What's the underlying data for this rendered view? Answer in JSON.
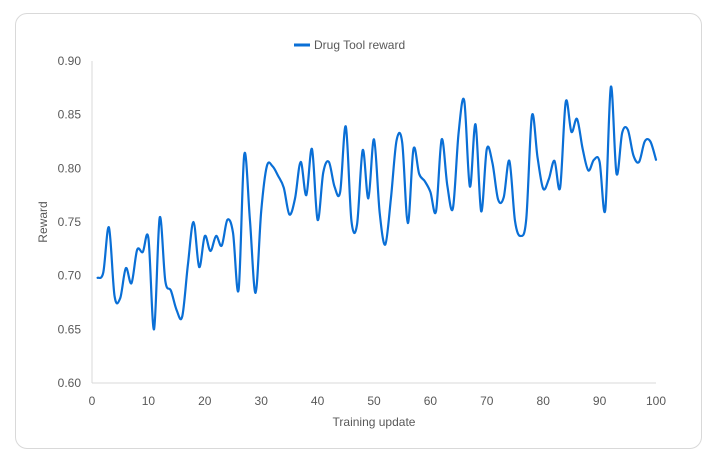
{
  "chart_data": {
    "type": "line",
    "xlabel": "Training update",
    "ylabel": "Reward",
    "xlim": [
      0,
      100
    ],
    "ylim": [
      0.6,
      0.9
    ],
    "x_ticks": [
      0,
      10,
      20,
      30,
      40,
      50,
      60,
      70,
      80,
      90,
      100
    ],
    "y_ticks": [
      0.6,
      0.65,
      0.7,
      0.75,
      0.8,
      0.85,
      0.9
    ],
    "x_tick_labels": [
      "0",
      "10",
      "20",
      "30",
      "40",
      "50",
      "60",
      "70",
      "80",
      "90",
      "100"
    ],
    "y_tick_labels": [
      "0.60",
      "0.65",
      "0.70",
      "0.75",
      "0.80",
      "0.85",
      "0.90"
    ],
    "legend_position": "top-center",
    "grid": false,
    "series": [
      {
        "name": "Drug Tool reward",
        "color": "#0a6fd6",
        "x": [
          1,
          2,
          3,
          4,
          5,
          6,
          7,
          8,
          9,
          10,
          11,
          12,
          13,
          14,
          15,
          16,
          17,
          18,
          19,
          20,
          21,
          22,
          23,
          24,
          25,
          26,
          27,
          28,
          29,
          30,
          31,
          32,
          33,
          34,
          35,
          36,
          37,
          38,
          39,
          40,
          41,
          42,
          43,
          44,
          45,
          46,
          47,
          48,
          49,
          50,
          51,
          52,
          53,
          54,
          55,
          56,
          57,
          58,
          59,
          60,
          61,
          62,
          63,
          64,
          65,
          66,
          67,
          68,
          69,
          70,
          71,
          72,
          73,
          74,
          75,
          76,
          77,
          78,
          79,
          80,
          81,
          82,
          83,
          84,
          85,
          86,
          87,
          88,
          89,
          90,
          91,
          92,
          93,
          94,
          95,
          96,
          97,
          98,
          99,
          100
        ],
        "values": [
          0.698,
          0.703,
          0.745,
          0.681,
          0.679,
          0.707,
          0.693,
          0.724,
          0.722,
          0.735,
          0.65,
          0.754,
          0.695,
          0.686,
          0.668,
          0.662,
          0.71,
          0.75,
          0.708,
          0.737,
          0.723,
          0.737,
          0.728,
          0.752,
          0.74,
          0.687,
          0.813,
          0.752,
          0.684,
          0.76,
          0.802,
          0.802,
          0.793,
          0.782,
          0.757,
          0.772,
          0.806,
          0.775,
          0.818,
          0.752,
          0.796,
          0.806,
          0.783,
          0.778,
          0.839,
          0.751,
          0.748,
          0.817,
          0.772,
          0.827,
          0.759,
          0.729,
          0.772,
          0.826,
          0.824,
          0.749,
          0.818,
          0.795,
          0.788,
          0.778,
          0.76,
          0.827,
          0.784,
          0.763,
          0.833,
          0.863,
          0.783,
          0.841,
          0.76,
          0.818,
          0.805,
          0.771,
          0.773,
          0.807,
          0.751,
          0.737,
          0.753,
          0.849,
          0.81,
          0.781,
          0.79,
          0.807,
          0.782,
          0.862,
          0.834,
          0.846,
          0.818,
          0.798,
          0.808,
          0.806,
          0.761,
          0.876,
          0.795,
          0.833,
          0.836,
          0.812,
          0.806,
          0.825,
          0.825,
          0.808
        ]
      }
    ]
  }
}
